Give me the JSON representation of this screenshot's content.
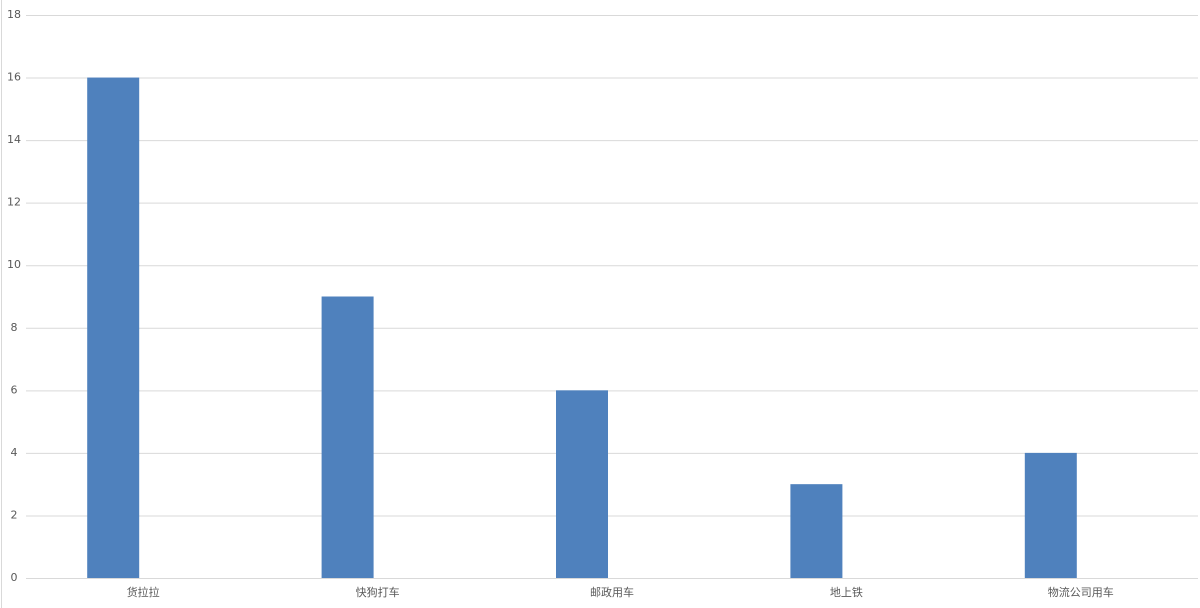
{
  "chart_data": {
    "type": "bar",
    "categories": [
      "货拉拉",
      "快狗打车",
      "邮政用车",
      "地上铁",
      "物流公司用车"
    ],
    "values": [
      16,
      9,
      6,
      3,
      4
    ],
    "color": "#4f81bd",
    "ylim": [
      0,
      18
    ],
    "yticks": [
      0,
      2,
      4,
      6,
      8,
      10,
      12,
      14,
      16,
      18
    ],
    "grid": true
  }
}
